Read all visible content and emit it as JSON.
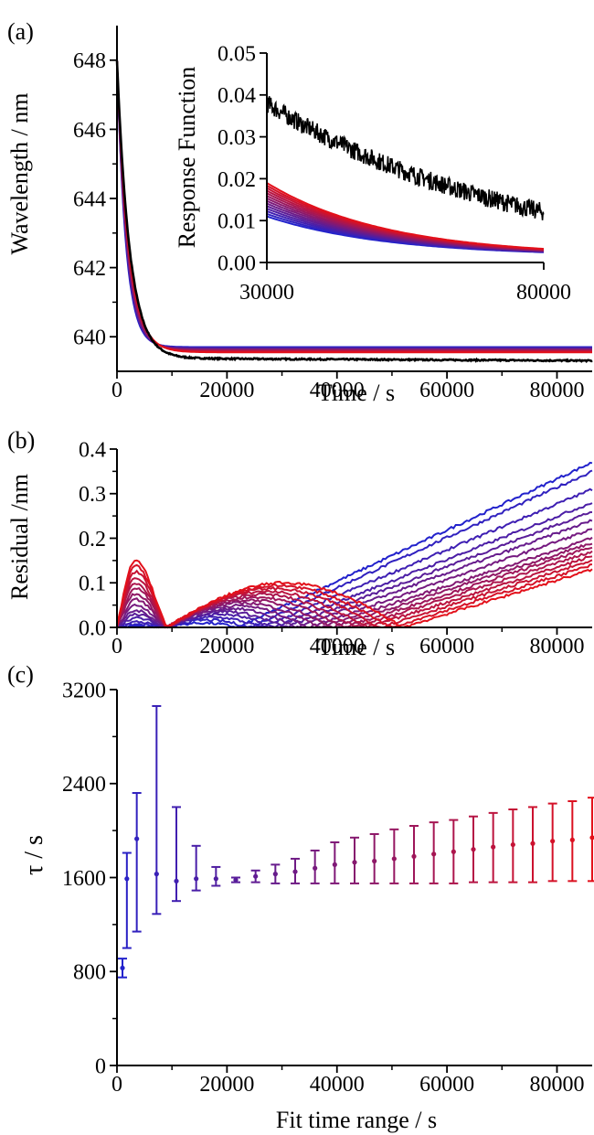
{
  "panels": {
    "a": {
      "label": "(a)",
      "chart_data": {
        "type": "line",
        "xlabel": "Time / s",
        "ylabel": "Wavelength / nm",
        "xlim": [
          0,
          86400
        ],
        "ylim": [
          639.0,
          649.0
        ],
        "xticks": [
          0,
          20000,
          40000,
          60000,
          80000
        ],
        "yticks": [
          640,
          642,
          644,
          646,
          648
        ],
        "series": [
          {
            "role": "measured",
            "color": "#000000",
            "start": 648.0,
            "end": 639.38,
            "tau": 2300,
            "slope": 8.5e-07
          },
          {
            "role": "fit-first",
            "color": "#2a2ad8",
            "start": 648.0,
            "end": 639.7,
            "tau": 1600,
            "slope": 0
          },
          {
            "role": "fit-last",
            "color": "#e01020",
            "start": 648.0,
            "end": 639.55,
            "tau": 2100,
            "slope": 0
          }
        ],
        "fit_count": 8
      },
      "inset": {
        "chart_data": {
          "type": "line",
          "ylabel": "Response Function",
          "xlim": [
            30000,
            80000
          ],
          "ylim": [
            0,
            0.05
          ],
          "xticks": [
            30000,
            80000
          ],
          "yticks": [
            0.0,
            0.01,
            0.02,
            0.03,
            0.04,
            0.05
          ],
          "ytick_labels": [
            "0.00",
            "0.01",
            "0.02",
            "0.03",
            "0.04",
            "0.05"
          ],
          "measured": {
            "color": "#000000",
            "start": 0.038,
            "end": 0.003,
            "noise": 0.0022
          },
          "fit_start_range": [
            0.011,
            0.019
          ],
          "fit_end": 0.0015,
          "fit_count": 14
        }
      }
    },
    "b": {
      "label": "(b)",
      "chart_data": {
        "type": "line",
        "xlabel": "Time / s",
        "ylabel": "Residual /nm",
        "xlim": [
          0,
          86400
        ],
        "ylim": [
          0,
          0.4
        ],
        "xticks": [
          0,
          20000,
          40000,
          60000,
          80000
        ],
        "yticks": [
          0.0,
          0.1,
          0.2,
          0.3,
          0.4
        ],
        "ytick_labels": [
          "0.0",
          "0.1",
          "0.2",
          "0.3",
          "0.4"
        ],
        "fit_ranges_s": [
          1000,
          3600,
          7200,
          10800,
          14400,
          18000,
          21600,
          25200,
          28800,
          32400,
          36000,
          39600,
          43200,
          46800,
          50400,
          54000,
          57600,
          61200,
          64800,
          68400,
          72000,
          75600,
          79200,
          82800,
          86400
        ],
        "end_residuals": [
          0.37,
          0.35,
          0.31,
          0.28,
          0.26,
          0.24,
          0.22,
          0.2,
          0.19,
          0.18,
          0.17,
          0.16,
          0.15,
          0.14,
          0.13
        ],
        "early_peaks": [
          0.18,
          0.165,
          0.15,
          0.135,
          0.12,
          0.105,
          0.09,
          0.075,
          0.06,
          0.045,
          0.035,
          0.025,
          0.015,
          0.008,
          0.004
        ]
      }
    },
    "c": {
      "label": "(c)",
      "chart_data": {
        "type": "scatter",
        "xlabel": "Fit time range / s",
        "ylabel": "τ / s",
        "xlim": [
          0,
          86400
        ],
        "ylim": [
          0,
          3200
        ],
        "xticks": [
          0,
          20000,
          40000,
          60000,
          80000
        ],
        "yticks": [
          0,
          800,
          1600,
          2400,
          3200
        ],
        "points": [
          {
            "x": 1000,
            "y": 830,
            "lo": 750,
            "hi": 910
          },
          {
            "x": 1800,
            "y": 1590,
            "lo": 1000,
            "hi": 1810
          },
          {
            "x": 3600,
            "y": 1930,
            "lo": 1140,
            "hi": 2320
          },
          {
            "x": 7200,
            "y": 1630,
            "lo": 1290,
            "hi": 3060
          },
          {
            "x": 10800,
            "y": 1570,
            "lo": 1400,
            "hi": 2200
          },
          {
            "x": 14400,
            "y": 1590,
            "lo": 1490,
            "hi": 1870
          },
          {
            "x": 18000,
            "y": 1590,
            "lo": 1530,
            "hi": 1690
          },
          {
            "x": 21600,
            "y": 1580,
            "lo": 1560,
            "hi": 1600
          },
          {
            "x": 25200,
            "y": 1610,
            "lo": 1560,
            "hi": 1660
          },
          {
            "x": 28800,
            "y": 1630,
            "lo": 1550,
            "hi": 1710
          },
          {
            "x": 32400,
            "y": 1650,
            "lo": 1550,
            "hi": 1760
          },
          {
            "x": 36000,
            "y": 1680,
            "lo": 1550,
            "hi": 1830
          },
          {
            "x": 39600,
            "y": 1710,
            "lo": 1550,
            "hi": 1900
          },
          {
            "x": 43200,
            "y": 1730,
            "lo": 1550,
            "hi": 1940
          },
          {
            "x": 46800,
            "y": 1740,
            "lo": 1550,
            "hi": 1970
          },
          {
            "x": 50400,
            "y": 1760,
            "lo": 1550,
            "hi": 2010
          },
          {
            "x": 54000,
            "y": 1780,
            "lo": 1550,
            "hi": 2040
          },
          {
            "x": 57600,
            "y": 1800,
            "lo": 1550,
            "hi": 2070
          },
          {
            "x": 61200,
            "y": 1820,
            "lo": 1550,
            "hi": 2090
          },
          {
            "x": 64800,
            "y": 1840,
            "lo": 1560,
            "hi": 2120
          },
          {
            "x": 68400,
            "y": 1860,
            "lo": 1560,
            "hi": 2150
          },
          {
            "x": 72000,
            "y": 1880,
            "lo": 1560,
            "hi": 2180
          },
          {
            "x": 75600,
            "y": 1890,
            "lo": 1560,
            "hi": 2200
          },
          {
            "x": 79200,
            "y": 1910,
            "lo": 1570,
            "hi": 2230
          },
          {
            "x": 82800,
            "y": 1920,
            "lo": 1570,
            "hi": 2250
          },
          {
            "x": 86400,
            "y": 1940,
            "lo": 1570,
            "hi": 2280
          }
        ]
      }
    }
  },
  "colors": {
    "start": "#2222cc",
    "end": "#e3101a",
    "axis": "#000000"
  }
}
